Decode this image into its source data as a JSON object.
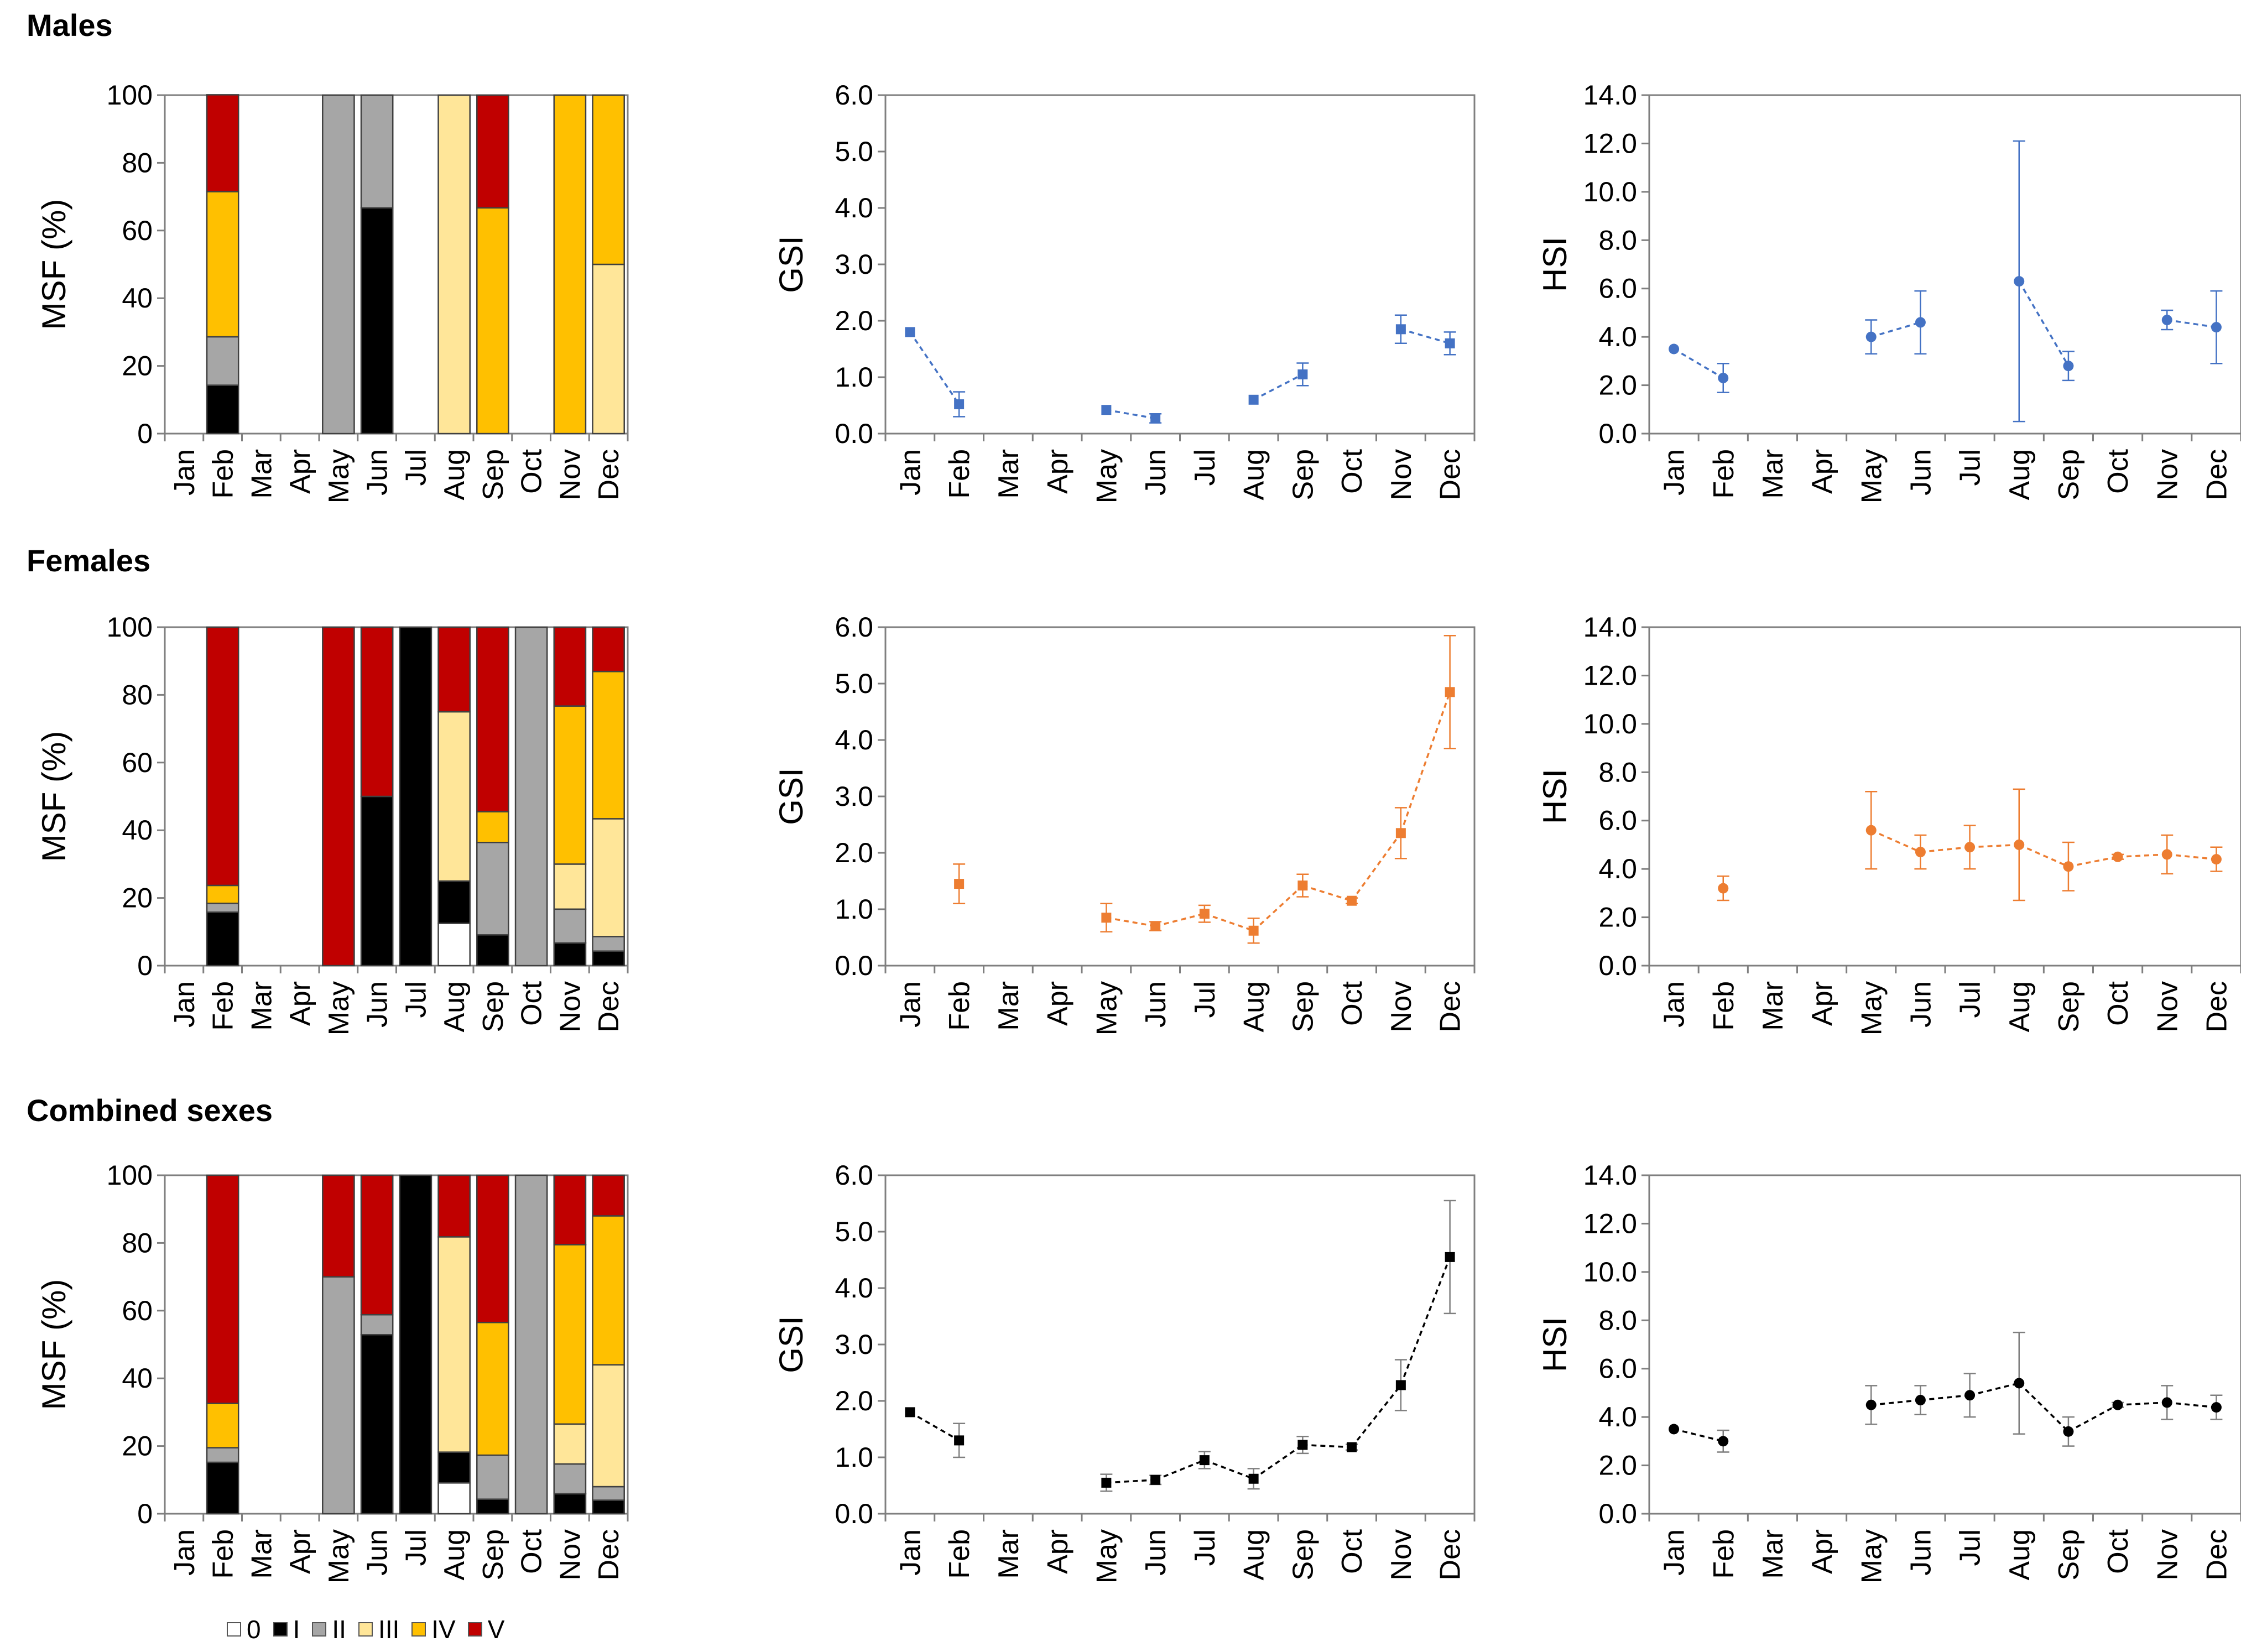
{
  "figure": {
    "months": [
      "Jan",
      "Feb",
      "Mar",
      "Apr",
      "May",
      "Jun",
      "Jul",
      "Aug",
      "Sep",
      "Oct",
      "Nov",
      "Dec"
    ],
    "stage_colors": {
      "0": "#ffffff",
      "I": "#000000",
      "II": "#a6a6a6",
      "III": "#ffe699",
      "IV": "#ffc000",
      "V": "#c00000"
    },
    "legend": [
      {
        "label": "0",
        "color": "#ffffff"
      },
      {
        "label": "I",
        "color": "#000000"
      },
      {
        "label": "II",
        "color": "#a6a6a6"
      },
      {
        "label": "III",
        "color": "#ffe699"
      },
      {
        "label": "IV",
        "color": "#ffc000"
      },
      {
        "label": "V",
        "color": "#c00000"
      }
    ]
  },
  "chart_data": [
    {
      "id": "males-msf",
      "row": "Males",
      "type": "bar",
      "stacked": true,
      "ylabel": "MSF (%)",
      "ylim": [
        0,
        100
      ],
      "yticks": [
        "0",
        "20",
        "40",
        "60",
        "80",
        "100"
      ],
      "categories": [
        "Jan",
        "Feb",
        "Mar",
        "Apr",
        "May",
        "Jun",
        "Jul",
        "Aug",
        "Sep",
        "Oct",
        "Nov",
        "Dec"
      ],
      "series": [
        {
          "name": "0",
          "values": [
            0,
            0,
            0,
            0,
            0,
            0,
            0,
            0,
            0,
            0,
            0,
            0
          ]
        },
        {
          "name": "I",
          "values": [
            0,
            14.3,
            0,
            0,
            0,
            66.7,
            0,
            0,
            0,
            0,
            0,
            0
          ]
        },
        {
          "name": "II",
          "values": [
            0,
            14.3,
            0,
            0,
            100,
            33.3,
            0,
            0,
            0,
            0,
            0,
            0
          ]
        },
        {
          "name": "III",
          "values": [
            0,
            0,
            0,
            0,
            0,
            0,
            0,
            100,
            0,
            0,
            0,
            50
          ]
        },
        {
          "name": "IV",
          "values": [
            0,
            42.9,
            0,
            0,
            0,
            0,
            0,
            0,
            66.7,
            0,
            100,
            50
          ]
        },
        {
          "name": "V",
          "values": [
            0,
            28.6,
            0,
            0,
            0,
            0,
            0,
            0,
            33.3,
            0,
            0,
            0
          ]
        }
      ]
    },
    {
      "id": "males-gsi",
      "row": "Males",
      "type": "line",
      "ylabel": "GSI",
      "ylim": [
        0,
        6
      ],
      "yticks": [
        "0.0",
        "1.0",
        "2.0",
        "3.0",
        "4.0",
        "5.0",
        "6.0"
      ],
      "color": "#4472c4",
      "marker": "square",
      "categories": [
        "Jan",
        "Feb",
        "Mar",
        "Apr",
        "May",
        "Jun",
        "Jul",
        "Aug",
        "Sep",
        "Oct",
        "Nov",
        "Dec"
      ],
      "values": [
        1.8,
        0.52,
        null,
        null,
        0.42,
        0.27,
        null,
        0.6,
        1.05,
        null,
        1.85,
        1.6
      ],
      "errors": [
        0,
        0.22,
        null,
        null,
        0,
        0.08,
        null,
        0,
        0.2,
        null,
        0.25,
        0.2
      ]
    },
    {
      "id": "males-hsi",
      "row": "Males",
      "type": "line",
      "ylabel": "HSI",
      "ylim": [
        0,
        14
      ],
      "yticks": [
        "0.0",
        "2.0",
        "4.0",
        "6.0",
        "8.0",
        "10.0",
        "12.0",
        "14.0"
      ],
      "color": "#4472c4",
      "marker": "circle",
      "categories": [
        "Jan",
        "Feb",
        "Mar",
        "Apr",
        "May",
        "Jun",
        "Jul",
        "Aug",
        "Sep",
        "Oct",
        "Nov",
        "Dec"
      ],
      "values": [
        3.5,
        2.3,
        null,
        null,
        4.0,
        4.6,
        null,
        6.3,
        2.8,
        null,
        4.7,
        4.4
      ],
      "errors": [
        0,
        0.6,
        null,
        null,
        0.7,
        1.3,
        null,
        5.8,
        0.6,
        null,
        0.4,
        1.5
      ]
    },
    {
      "id": "females-msf",
      "row": "Females",
      "type": "bar",
      "stacked": true,
      "ylabel": "MSF (%)",
      "ylim": [
        0,
        100
      ],
      "yticks": [
        "0",
        "20",
        "40",
        "60",
        "80",
        "100"
      ],
      "categories": [
        "Jan",
        "Feb",
        "Mar",
        "Apr",
        "May",
        "Jun",
        "Jul",
        "Aug",
        "Sep",
        "Oct",
        "Nov",
        "Dec"
      ],
      "series": [
        {
          "name": "0",
          "values": [
            0,
            0,
            0,
            0,
            0,
            0,
            0,
            12.5,
            0,
            0,
            0,
            0
          ]
        },
        {
          "name": "I",
          "values": [
            0,
            15.8,
            0,
            0,
            0,
            50,
            100,
            12.5,
            9.1,
            0,
            6.7,
            4.3
          ]
        },
        {
          "name": "II",
          "values": [
            0,
            2.6,
            0,
            0,
            0,
            0,
            0,
            0,
            27.3,
            100,
            10,
            4.3
          ]
        },
        {
          "name": "III",
          "values": [
            0,
            0,
            0,
            0,
            0,
            0,
            0,
            50,
            0,
            0,
            13.3,
            34.8
          ]
        },
        {
          "name": "IV",
          "values": [
            0,
            5.3,
            0,
            0,
            0,
            0,
            0,
            0,
            9.1,
            0,
            46.7,
            43.5
          ]
        },
        {
          "name": "V",
          "values": [
            0,
            76.3,
            0,
            0,
            100,
            50,
            0,
            25,
            54.5,
            0,
            23.3,
            13.1
          ]
        }
      ]
    },
    {
      "id": "females-gsi",
      "row": "Females",
      "type": "line",
      "ylabel": "GSI",
      "ylim": [
        0,
        6
      ],
      "yticks": [
        "0.0",
        "1.0",
        "2.0",
        "3.0",
        "4.0",
        "5.0",
        "6.0"
      ],
      "color": "#ed7d31",
      "marker": "square",
      "categories": [
        "Jan",
        "Feb",
        "Mar",
        "Apr",
        "May",
        "Jun",
        "Jul",
        "Aug",
        "Sep",
        "Oct",
        "Nov",
        "Dec"
      ],
      "values": [
        null,
        1.45,
        null,
        null,
        0.85,
        0.7,
        0.92,
        0.62,
        1.42,
        1.15,
        2.35,
        4.85
      ],
      "errors": [
        null,
        0.35,
        null,
        null,
        0.25,
        0.08,
        0.15,
        0.22,
        0.2,
        0.05,
        0.45,
        1.0
      ],
      "connected_from": 4
    },
    {
      "id": "females-hsi",
      "row": "Females",
      "type": "line",
      "ylabel": "HSI",
      "ylim": [
        0,
        14
      ],
      "yticks": [
        "0.0",
        "2.0",
        "4.0",
        "6.0",
        "8.0",
        "10.0",
        "12.0",
        "14.0"
      ],
      "color": "#ed7d31",
      "marker": "circle",
      "categories": [
        "Jan",
        "Feb",
        "Mar",
        "Apr",
        "May",
        "Jun",
        "Jul",
        "Aug",
        "Sep",
        "Oct",
        "Nov",
        "Dec"
      ],
      "values": [
        null,
        3.2,
        null,
        null,
        5.6,
        4.7,
        4.9,
        5.0,
        4.1,
        4.5,
        4.6,
        4.4
      ],
      "errors": [
        null,
        0.5,
        null,
        null,
        1.6,
        0.7,
        0.9,
        2.3,
        1.0,
        0.1,
        0.8,
        0.5
      ],
      "connected_from": 4
    },
    {
      "id": "combined-msf",
      "row": "Combined sexes",
      "type": "bar",
      "stacked": true,
      "ylabel": "MSF (%)",
      "ylim": [
        0,
        100
      ],
      "yticks": [
        "0",
        "20",
        "40",
        "60",
        "80",
        "100"
      ],
      "categories": [
        "Jan",
        "Feb",
        "Mar",
        "Apr",
        "May",
        "Jun",
        "Jul",
        "Aug",
        "Sep",
        "Oct",
        "Nov",
        "Dec"
      ],
      "series": [
        {
          "name": "0",
          "values": [
            0,
            0,
            0,
            0,
            0,
            0,
            0,
            9.1,
            0,
            0,
            0,
            0
          ]
        },
        {
          "name": "I",
          "values": [
            0,
            15.2,
            0,
            0,
            0,
            52.9,
            100,
            9.1,
            4.3,
            0,
            5.9,
            4.0
          ]
        },
        {
          "name": "II",
          "values": [
            0,
            4.3,
            0,
            0,
            70,
            5.9,
            0,
            0,
            13.0,
            100,
            8.8,
            4.0
          ]
        },
        {
          "name": "III",
          "values": [
            0,
            0,
            0,
            0,
            0,
            0,
            0,
            63.6,
            0,
            0,
            11.8,
            36.0
          ]
        },
        {
          "name": "IV",
          "values": [
            0,
            13.1,
            0,
            0,
            0,
            0,
            0,
            0,
            39.2,
            0,
            53.0,
            44.0
          ]
        },
        {
          "name": "V",
          "values": [
            0,
            67.4,
            0,
            0,
            30,
            41.2,
            0,
            18.2,
            43.5,
            0,
            20.5,
            12.0
          ]
        }
      ]
    },
    {
      "id": "combined-gsi",
      "row": "Combined sexes",
      "type": "line",
      "ylabel": "GSI",
      "ylim": [
        0,
        6
      ],
      "yticks": [
        "0.0",
        "1.0",
        "2.0",
        "3.0",
        "4.0",
        "5.0",
        "6.0"
      ],
      "color": "#000000",
      "marker": "square",
      "categories": [
        "Jan",
        "Feb",
        "Mar",
        "Apr",
        "May",
        "Jun",
        "Jul",
        "Aug",
        "Sep",
        "Oct",
        "Nov",
        "Dec"
      ],
      "values": [
        1.8,
        1.3,
        null,
        null,
        0.55,
        0.6,
        0.95,
        0.62,
        1.22,
        1.18,
        2.28,
        4.55
      ],
      "errors": [
        0,
        0.3,
        null,
        null,
        0.15,
        0.08,
        0.15,
        0.18,
        0.15,
        0.05,
        0.45,
        1.0
      ]
    },
    {
      "id": "combined-hsi",
      "row": "Combined sexes",
      "type": "line",
      "ylabel": "HSI",
      "ylim": [
        0,
        14
      ],
      "yticks": [
        "0.0",
        "2.0",
        "4.0",
        "6.0",
        "8.0",
        "10.0",
        "12.0",
        "14.0"
      ],
      "color": "#000000",
      "marker": "circle",
      "categories": [
        "Jan",
        "Feb",
        "Mar",
        "Apr",
        "May",
        "Jun",
        "Jul",
        "Aug",
        "Sep",
        "Oct",
        "Nov",
        "Dec"
      ],
      "values": [
        3.5,
        3.0,
        null,
        null,
        4.5,
        4.7,
        4.9,
        5.4,
        3.4,
        4.5,
        4.6,
        4.4
      ],
      "errors": [
        0,
        0.45,
        null,
        null,
        0.8,
        0.6,
        0.9,
        2.1,
        0.6,
        0.1,
        0.7,
        0.5
      ]
    }
  ],
  "rows": [
    {
      "title": "Males"
    },
    {
      "title": "Females"
    },
    {
      "title": "Combined sexes"
    }
  ]
}
